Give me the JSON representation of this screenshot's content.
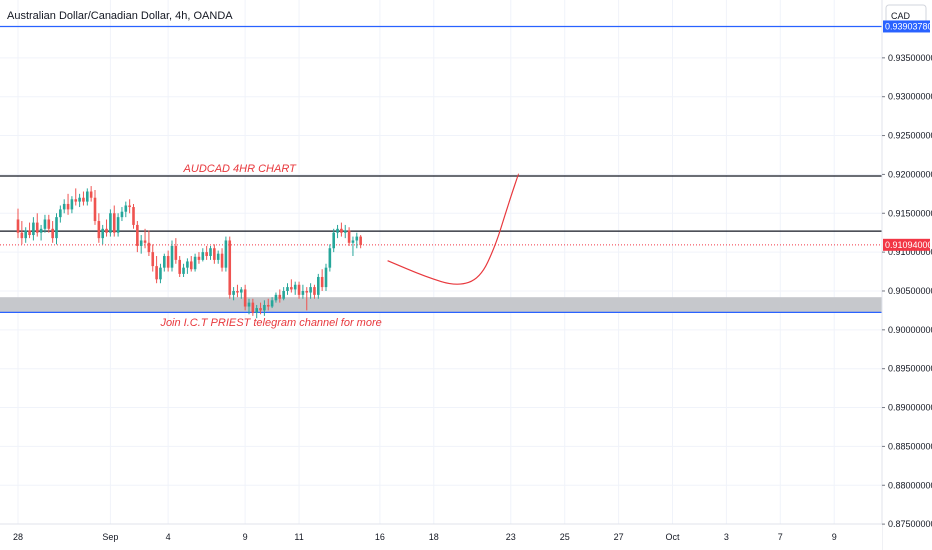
{
  "chart_data": {
    "type": "candlestick",
    "title": "Australian Dollar/Canadian Dollar, 4h, OANDA",
    "currency_label": "CAD",
    "ylim": [
      0.8745,
      0.9418
    ],
    "y_ticks": [
      "0.93500000",
      "0.93000000",
      "0.92500000",
      "0.92000000",
      "0.91500000",
      "0.91000000",
      "0.90500000",
      "0.90000000",
      "0.89500000",
      "0.89000000",
      "0.88500000",
      "0.88000000",
      "0.87500000"
    ],
    "x_ticks": [
      {
        "label": "28",
        "bar": 0
      },
      {
        "label": "Sep",
        "bar": 24
      },
      {
        "label": "4",
        "bar": 39
      },
      {
        "label": "9",
        "bar": 59
      },
      {
        "label": "11",
        "bar": 73
      },
      {
        "label": "16",
        "bar": 94
      },
      {
        "label": "18",
        "bar": 108
      },
      {
        "label": "23",
        "bar": 128
      },
      {
        "label": "25",
        "bar": 142
      },
      {
        "label": "27",
        "bar": 156
      },
      {
        "label": "Oct",
        "bar": 170
      },
      {
        "label": "3",
        "bar": 184
      },
      {
        "label": "7",
        "bar": 198
      },
      {
        "label": "9",
        "bar": 212
      }
    ],
    "candles": [
      {
        "o": 0.9142,
        "h": 0.9156,
        "l": 0.9118,
        "c": 0.9125
      },
      {
        "o": 0.9125,
        "h": 0.914,
        "l": 0.911,
        "c": 0.9118
      },
      {
        "o": 0.9118,
        "h": 0.9132,
        "l": 0.9112,
        "c": 0.9128
      },
      {
        "o": 0.9128,
        "h": 0.9138,
        "l": 0.9118,
        "c": 0.9122
      },
      {
        "o": 0.9122,
        "h": 0.9145,
        "l": 0.9115,
        "c": 0.9138
      },
      {
        "o": 0.9138,
        "h": 0.915,
        "l": 0.912,
        "c": 0.9125
      },
      {
        "o": 0.9125,
        "h": 0.9135,
        "l": 0.9115,
        "c": 0.913
      },
      {
        "o": 0.913,
        "h": 0.9148,
        "l": 0.9125,
        "c": 0.9142
      },
      {
        "o": 0.9142,
        "h": 0.9148,
        "l": 0.9125,
        "c": 0.913
      },
      {
        "o": 0.913,
        "h": 0.914,
        "l": 0.9112,
        "c": 0.9118
      },
      {
        "o": 0.9118,
        "h": 0.915,
        "l": 0.911,
        "c": 0.9145
      },
      {
        "o": 0.9145,
        "h": 0.916,
        "l": 0.9138,
        "c": 0.9155
      },
      {
        "o": 0.9155,
        "h": 0.9168,
        "l": 0.915,
        "c": 0.9162
      },
      {
        "o": 0.9162,
        "h": 0.9175,
        "l": 0.9148,
        "c": 0.9155
      },
      {
        "o": 0.9155,
        "h": 0.9172,
        "l": 0.915,
        "c": 0.9168
      },
      {
        "o": 0.9168,
        "h": 0.9182,
        "l": 0.916,
        "c": 0.9165
      },
      {
        "o": 0.9165,
        "h": 0.9175,
        "l": 0.9158,
        "c": 0.917
      },
      {
        "o": 0.917,
        "h": 0.9178,
        "l": 0.916,
        "c": 0.9165
      },
      {
        "o": 0.9165,
        "h": 0.9182,
        "l": 0.916,
        "c": 0.9178
      },
      {
        "o": 0.9178,
        "h": 0.9185,
        "l": 0.9165,
        "c": 0.917
      },
      {
        "o": 0.917,
        "h": 0.918,
        "l": 0.9135,
        "c": 0.914
      },
      {
        "o": 0.914,
        "h": 0.915,
        "l": 0.9112,
        "c": 0.9118
      },
      {
        "o": 0.9118,
        "h": 0.9135,
        "l": 0.911,
        "c": 0.913
      },
      {
        "o": 0.913,
        "h": 0.9142,
        "l": 0.912,
        "c": 0.9125
      },
      {
        "o": 0.9125,
        "h": 0.9155,
        "l": 0.912,
        "c": 0.915
      },
      {
        "o": 0.915,
        "h": 0.916,
        "l": 0.912,
        "c": 0.9125
      },
      {
        "o": 0.9125,
        "h": 0.915,
        "l": 0.912,
        "c": 0.9145
      },
      {
        "o": 0.9145,
        "h": 0.9158,
        "l": 0.914,
        "c": 0.9152
      },
      {
        "o": 0.9152,
        "h": 0.9165,
        "l": 0.9145,
        "c": 0.916
      },
      {
        "o": 0.916,
        "h": 0.9168,
        "l": 0.915,
        "c": 0.9158
      },
      {
        "o": 0.9158,
        "h": 0.9162,
        "l": 0.913,
        "c": 0.9135
      },
      {
        "o": 0.9135,
        "h": 0.914,
        "l": 0.91,
        "c": 0.9108
      },
      {
        "o": 0.9108,
        "h": 0.9122,
        "l": 0.9098,
        "c": 0.9115
      },
      {
        "o": 0.9115,
        "h": 0.913,
        "l": 0.9105,
        "c": 0.9112
      },
      {
        "o": 0.9112,
        "h": 0.9128,
        "l": 0.9095,
        "c": 0.91
      },
      {
        "o": 0.91,
        "h": 0.911,
        "l": 0.9075,
        "c": 0.9082
      },
      {
        "o": 0.9082,
        "h": 0.9095,
        "l": 0.906,
        "c": 0.9065
      },
      {
        "o": 0.9065,
        "h": 0.9085,
        "l": 0.906,
        "c": 0.908
      },
      {
        "o": 0.908,
        "h": 0.9098,
        "l": 0.9075,
        "c": 0.9095
      },
      {
        "o": 0.9095,
        "h": 0.9102,
        "l": 0.9075,
        "c": 0.908
      },
      {
        "o": 0.908,
        "h": 0.9115,
        "l": 0.9075,
        "c": 0.9108
      },
      {
        "o": 0.9108,
        "h": 0.9118,
        "l": 0.9085,
        "c": 0.909
      },
      {
        "o": 0.909,
        "h": 0.9095,
        "l": 0.9068,
        "c": 0.9072
      },
      {
        "o": 0.9072,
        "h": 0.9085,
        "l": 0.9068,
        "c": 0.908
      },
      {
        "o": 0.908,
        "h": 0.9092,
        "l": 0.9072,
        "c": 0.9088
      },
      {
        "o": 0.9088,
        "h": 0.9095,
        "l": 0.9075,
        "c": 0.9078
      },
      {
        "o": 0.9078,
        "h": 0.9098,
        "l": 0.9075,
        "c": 0.9094
      },
      {
        "o": 0.9094,
        "h": 0.91,
        "l": 0.9085,
        "c": 0.909
      },
      {
        "o": 0.909,
        "h": 0.9105,
        "l": 0.9088,
        "c": 0.91
      },
      {
        "o": 0.91,
        "h": 0.9108,
        "l": 0.909,
        "c": 0.9095
      },
      {
        "o": 0.9095,
        "h": 0.9108,
        "l": 0.909,
        "c": 0.9105
      },
      {
        "o": 0.9105,
        "h": 0.911,
        "l": 0.9085,
        "c": 0.909
      },
      {
        "o": 0.909,
        "h": 0.9102,
        "l": 0.9085,
        "c": 0.9098
      },
      {
        "o": 0.9098,
        "h": 0.9105,
        "l": 0.9075,
        "c": 0.908
      },
      {
        "o": 0.908,
        "h": 0.912,
        "l": 0.9075,
        "c": 0.9115
      },
      {
        "o": 0.9115,
        "h": 0.912,
        "l": 0.904,
        "c": 0.9045
      },
      {
        "o": 0.9045,
        "h": 0.9055,
        "l": 0.9038,
        "c": 0.905
      },
      {
        "o": 0.905,
        "h": 0.9058,
        "l": 0.9042,
        "c": 0.9048
      },
      {
        "o": 0.9048,
        "h": 0.9055,
        "l": 0.904,
        "c": 0.9052
      },
      {
        "o": 0.9052,
        "h": 0.9058,
        "l": 0.9025,
        "c": 0.903
      },
      {
        "o": 0.903,
        "h": 0.904,
        "l": 0.902,
        "c": 0.9035
      },
      {
        "o": 0.9035,
        "h": 0.904,
        "l": 0.9018,
        "c": 0.9022
      },
      {
        "o": 0.9022,
        "h": 0.9032,
        "l": 0.9015,
        "c": 0.9028
      },
      {
        "o": 0.9028,
        "h": 0.9035,
        "l": 0.902,
        "c": 0.9025
      },
      {
        "o": 0.9025,
        "h": 0.9038,
        "l": 0.9018,
        "c": 0.9032
      },
      {
        "o": 0.9032,
        "h": 0.904,
        "l": 0.9025,
        "c": 0.903
      },
      {
        "o": 0.903,
        "h": 0.9042,
        "l": 0.9028,
        "c": 0.9038
      },
      {
        "o": 0.9038,
        "h": 0.9048,
        "l": 0.9035,
        "c": 0.9045
      },
      {
        "o": 0.9045,
        "h": 0.9052,
        "l": 0.9035,
        "c": 0.904
      },
      {
        "o": 0.904,
        "h": 0.9055,
        "l": 0.9038,
        "c": 0.905
      },
      {
        "o": 0.905,
        "h": 0.906,
        "l": 0.9045,
        "c": 0.9055
      },
      {
        "o": 0.9055,
        "h": 0.9065,
        "l": 0.9048,
        "c": 0.9052
      },
      {
        "o": 0.9052,
        "h": 0.9062,
        "l": 0.9045,
        "c": 0.9058
      },
      {
        "o": 0.9058,
        "h": 0.9062,
        "l": 0.904,
        "c": 0.9045
      },
      {
        "o": 0.9045,
        "h": 0.9058,
        "l": 0.904,
        "c": 0.905
      },
      {
        "o": 0.905,
        "h": 0.9055,
        "l": 0.9025,
        "c": 0.9048
      },
      {
        "o": 0.9048,
        "h": 0.906,
        "l": 0.904,
        "c": 0.9055
      },
      {
        "o": 0.9055,
        "h": 0.9058,
        "l": 0.904,
        "c": 0.9045
      },
      {
        "o": 0.9045,
        "h": 0.9072,
        "l": 0.904,
        "c": 0.9068
      },
      {
        "o": 0.9068,
        "h": 0.9078,
        "l": 0.905,
        "c": 0.9055
      },
      {
        "o": 0.9055,
        "h": 0.9085,
        "l": 0.905,
        "c": 0.908
      },
      {
        "o": 0.908,
        "h": 0.911,
        "l": 0.9075,
        "c": 0.9105
      },
      {
        "o": 0.9105,
        "h": 0.913,
        "l": 0.91,
        "c": 0.9125
      },
      {
        "o": 0.9125,
        "h": 0.9135,
        "l": 0.9118,
        "c": 0.913
      },
      {
        "o": 0.913,
        "h": 0.9138,
        "l": 0.912,
        "c": 0.9125
      },
      {
        "o": 0.9125,
        "h": 0.9135,
        "l": 0.9118,
        "c": 0.9128
      },
      {
        "o": 0.9128,
        "h": 0.9132,
        "l": 0.9108,
        "c": 0.9112
      },
      {
        "o": 0.9112,
        "h": 0.912,
        "l": 0.9095,
        "c": 0.9115
      },
      {
        "o": 0.9115,
        "h": 0.9125,
        "l": 0.9105,
        "c": 0.912
      },
      {
        "o": 0.912,
        "h": 0.9122,
        "l": 0.9105,
        "c": 0.9109
      }
    ],
    "horizontal_lines": [
      {
        "value": 0.9390378,
        "color": "#2962ff",
        "label": "0.93903780"
      },
      {
        "value": 0.9198,
        "color": "#131722"
      },
      {
        "value": 0.9127,
        "color": "#131722"
      },
      {
        "value": 0.90225,
        "color": "#2962ff"
      }
    ],
    "zone": {
      "from": 0.90225,
      "to": 0.9042,
      "color": "#c6c8cc"
    },
    "last_price": {
      "value": 0.91094,
      "label": "0.91094000",
      "color": "#f23645"
    },
    "projection": {
      "from_bar": 96,
      "points": [
        [
          0,
          0.9089
        ],
        [
          10,
          0.9068
        ],
        [
          18,
          0.9056
        ],
        [
          24,
          0.9066
        ],
        [
          28,
          0.9108
        ],
        [
          31,
          0.9156
        ],
        [
          34,
          0.9201
        ]
      ],
      "color": "#e8383d"
    },
    "annotations": [
      {
        "text": "AUDCAD 4HR CHART",
        "bar": 43,
        "value": 0.9203
      },
      {
        "text": "Join  I.C.T PRIEST telegram channel for more",
        "bar": 37,
        "value": 0.9005
      }
    ],
    "colors": {
      "up": "#26a69a",
      "down": "#ef5350",
      "grid": "#f0f3fa",
      "axis": "#e0e3eb"
    }
  }
}
